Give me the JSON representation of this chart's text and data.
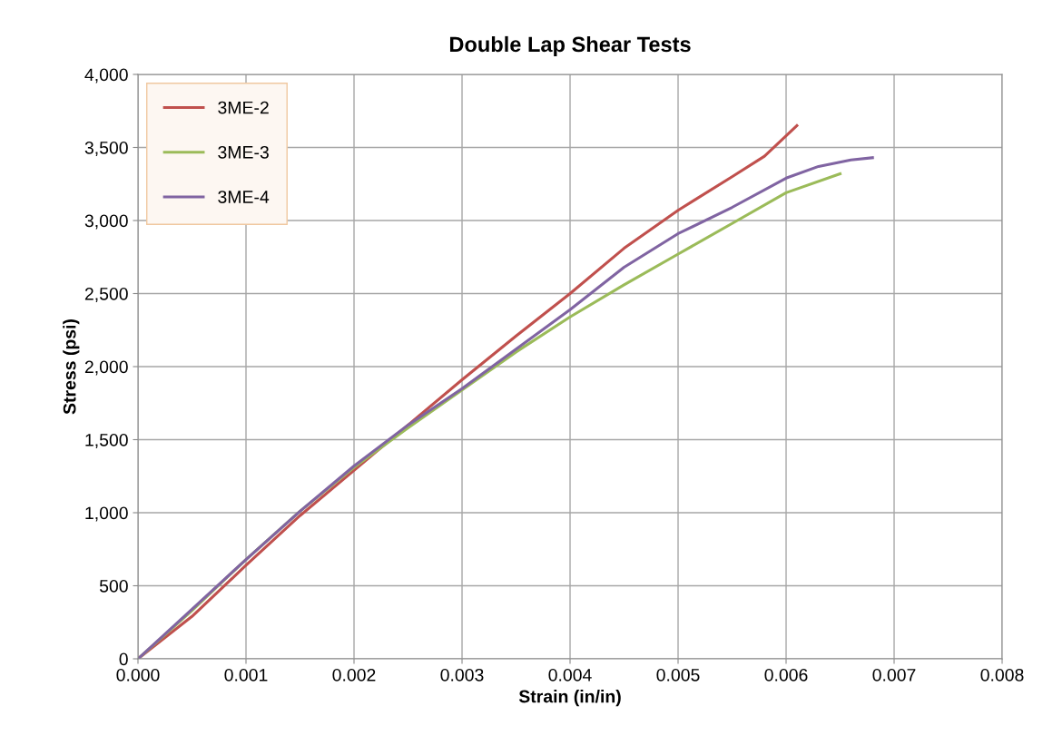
{
  "chart_data": {
    "type": "line",
    "title": "Double Lap Shear Tests",
    "xlabel": "Strain (in/in)",
    "ylabel": "Stress (psi)",
    "xlim": [
      0,
      0.008
    ],
    "xticks": [
      {
        "value": 0,
        "label": "0.000"
      },
      {
        "value": 0.001,
        "label": "0.001"
      },
      {
        "value": 0.002,
        "label": "0.002"
      },
      {
        "value": 0.003,
        "label": "0.003"
      },
      {
        "value": 0.004,
        "label": "0.004"
      },
      {
        "value": 0.005,
        "label": "0.005"
      },
      {
        "value": 0.006,
        "label": "0.006"
      },
      {
        "value": 0.007,
        "label": "0.007"
      },
      {
        "value": 0.008,
        "label": "0.008"
      }
    ],
    "ylim": [
      0,
      4000
    ],
    "yticks": [
      0,
      500,
      {
        "value": 1000,
        "label": "1,000"
      },
      {
        "value": 1500,
        "label": "1,500"
      },
      {
        "value": 2000,
        "label": "2,000"
      },
      {
        "value": 2500,
        "label": "2,500"
      },
      {
        "value": 3000,
        "label": "3,000"
      },
      {
        "value": 3500,
        "label": "3,500"
      },
      {
        "value": 4000,
        "label": "4,000"
      }
    ],
    "grid": true,
    "legend": "top left",
    "marker": "none",
    "line_style": "solid",
    "series": [
      {
        "name": "3ME-2",
        "color": "#c0504d",
        "x": [
          0,
          0.0005,
          0.001,
          0.0015,
          0.002,
          0.0025,
          0.003,
          0.0035,
          0.004,
          0.0045,
          0.005,
          0.0055,
          0.0058,
          0.0061
        ],
        "values": [
          0,
          290,
          640,
          980,
          1290,
          1600,
          1910,
          2210,
          2500,
          2810,
          3070,
          3300,
          3440,
          3650
        ]
      },
      {
        "name": "3ME-3",
        "color": "#9bbb59",
        "x": [
          0,
          0.0005,
          0.001,
          0.0015,
          0.002,
          0.0025,
          0.003,
          0.0035,
          0.004,
          0.0045,
          0.005,
          0.0055,
          0.006,
          0.0065
        ],
        "values": [
          0,
          330,
          680,
          1010,
          1310,
          1580,
          1840,
          2100,
          2340,
          2560,
          2770,
          2980,
          3190,
          3320
        ]
      },
      {
        "name": "3ME-4",
        "color": "#8064a2",
        "x": [
          0,
          0.0005,
          0.001,
          0.0015,
          0.002,
          0.0025,
          0.003,
          0.0035,
          0.004,
          0.0045,
          0.005,
          0.0055,
          0.006,
          0.0063,
          0.0066,
          0.0068
        ],
        "values": [
          0,
          340,
          680,
          1010,
          1320,
          1600,
          1850,
          2120,
          2390,
          2680,
          2910,
          3090,
          3290,
          3370,
          3415,
          3430
        ]
      }
    ]
  }
}
